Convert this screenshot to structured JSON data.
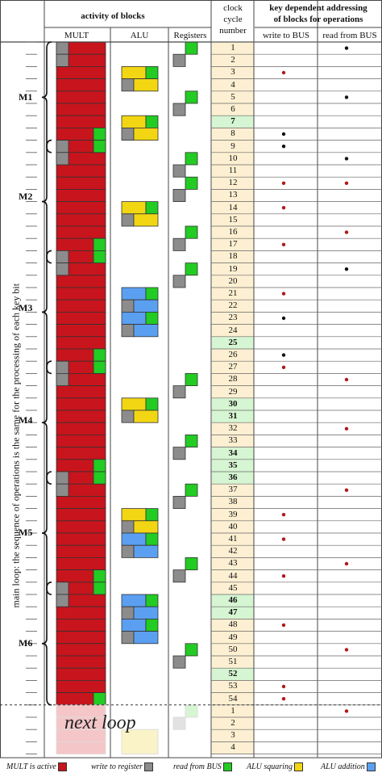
{
  "header": {
    "activity_of_blocks": "activity of blocks",
    "mult": "MULT",
    "alu": "ALU",
    "registers": "Registers",
    "clock_cycle_number": [
      "clock",
      "cycle",
      "number"
    ],
    "key_dependent": [
      "key dependent addressing",
      "of blocks for operations"
    ],
    "write_to_bus": "write to BUS",
    "read_from_bus": "read from BUS"
  },
  "side_label": "main loop: the sequence of operations is the same for the processing of each key bit",
  "modules": [
    "M1",
    "M2",
    "M3",
    "M4",
    "M5",
    "M6"
  ],
  "next_loop": "next loop",
  "colors": {
    "mult_active": "#c8141c",
    "write_register": "#8c8c8c",
    "read_bus": "#22cc22",
    "alu_squaring": "#f2d614",
    "alu_addition": "#5b9ff0",
    "clock_bg": "#fdf0d2",
    "clock_highlight": "#d6f5d2",
    "dot_red": "#b01818",
    "dot_black": "#111111"
  },
  "cycles": {
    "main": [
      "1",
      "2",
      "3",
      "4",
      "5",
      "6",
      "7",
      "8",
      "9",
      "10",
      "11",
      "12",
      "13",
      "14",
      "15",
      "16",
      "17",
      "18",
      "19",
      "20",
      "21",
      "22",
      "23",
      "24",
      "25",
      "26",
      "27",
      "28",
      "29",
      "30",
      "31",
      "32",
      "33",
      "34",
      "35",
      "36",
      "37",
      "38",
      "39",
      "40",
      "41",
      "42",
      "43",
      "44",
      "45",
      "46",
      "47",
      "48",
      "49",
      "50",
      "51",
      "52",
      "53",
      "54"
    ],
    "highlighted": [
      "7",
      "25",
      "30",
      "31",
      "34",
      "35",
      "36",
      "46",
      "47",
      "52"
    ],
    "next": [
      "1",
      "2",
      "3",
      "4"
    ]
  },
  "bus_ops": {
    "write_red": [
      "3",
      "12",
      "14",
      "17",
      "21",
      "27",
      "39",
      "41",
      "44",
      "48",
      "53",
      "54"
    ],
    "write_black": [
      "8",
      "9",
      "23",
      "26"
    ],
    "read_red": [
      "12",
      "16",
      "28",
      "32",
      "37",
      "43",
      "50"
    ],
    "read_black": [
      "1",
      "5",
      "10",
      "19"
    ],
    "next_write_red": [],
    "next_read_red": [
      "1"
    ]
  },
  "legend": {
    "mult": "MULT is active",
    "write": "write to register",
    "read": "read from BUS",
    "squaring": "ALU squaring",
    "addition": "ALU addition"
  }
}
